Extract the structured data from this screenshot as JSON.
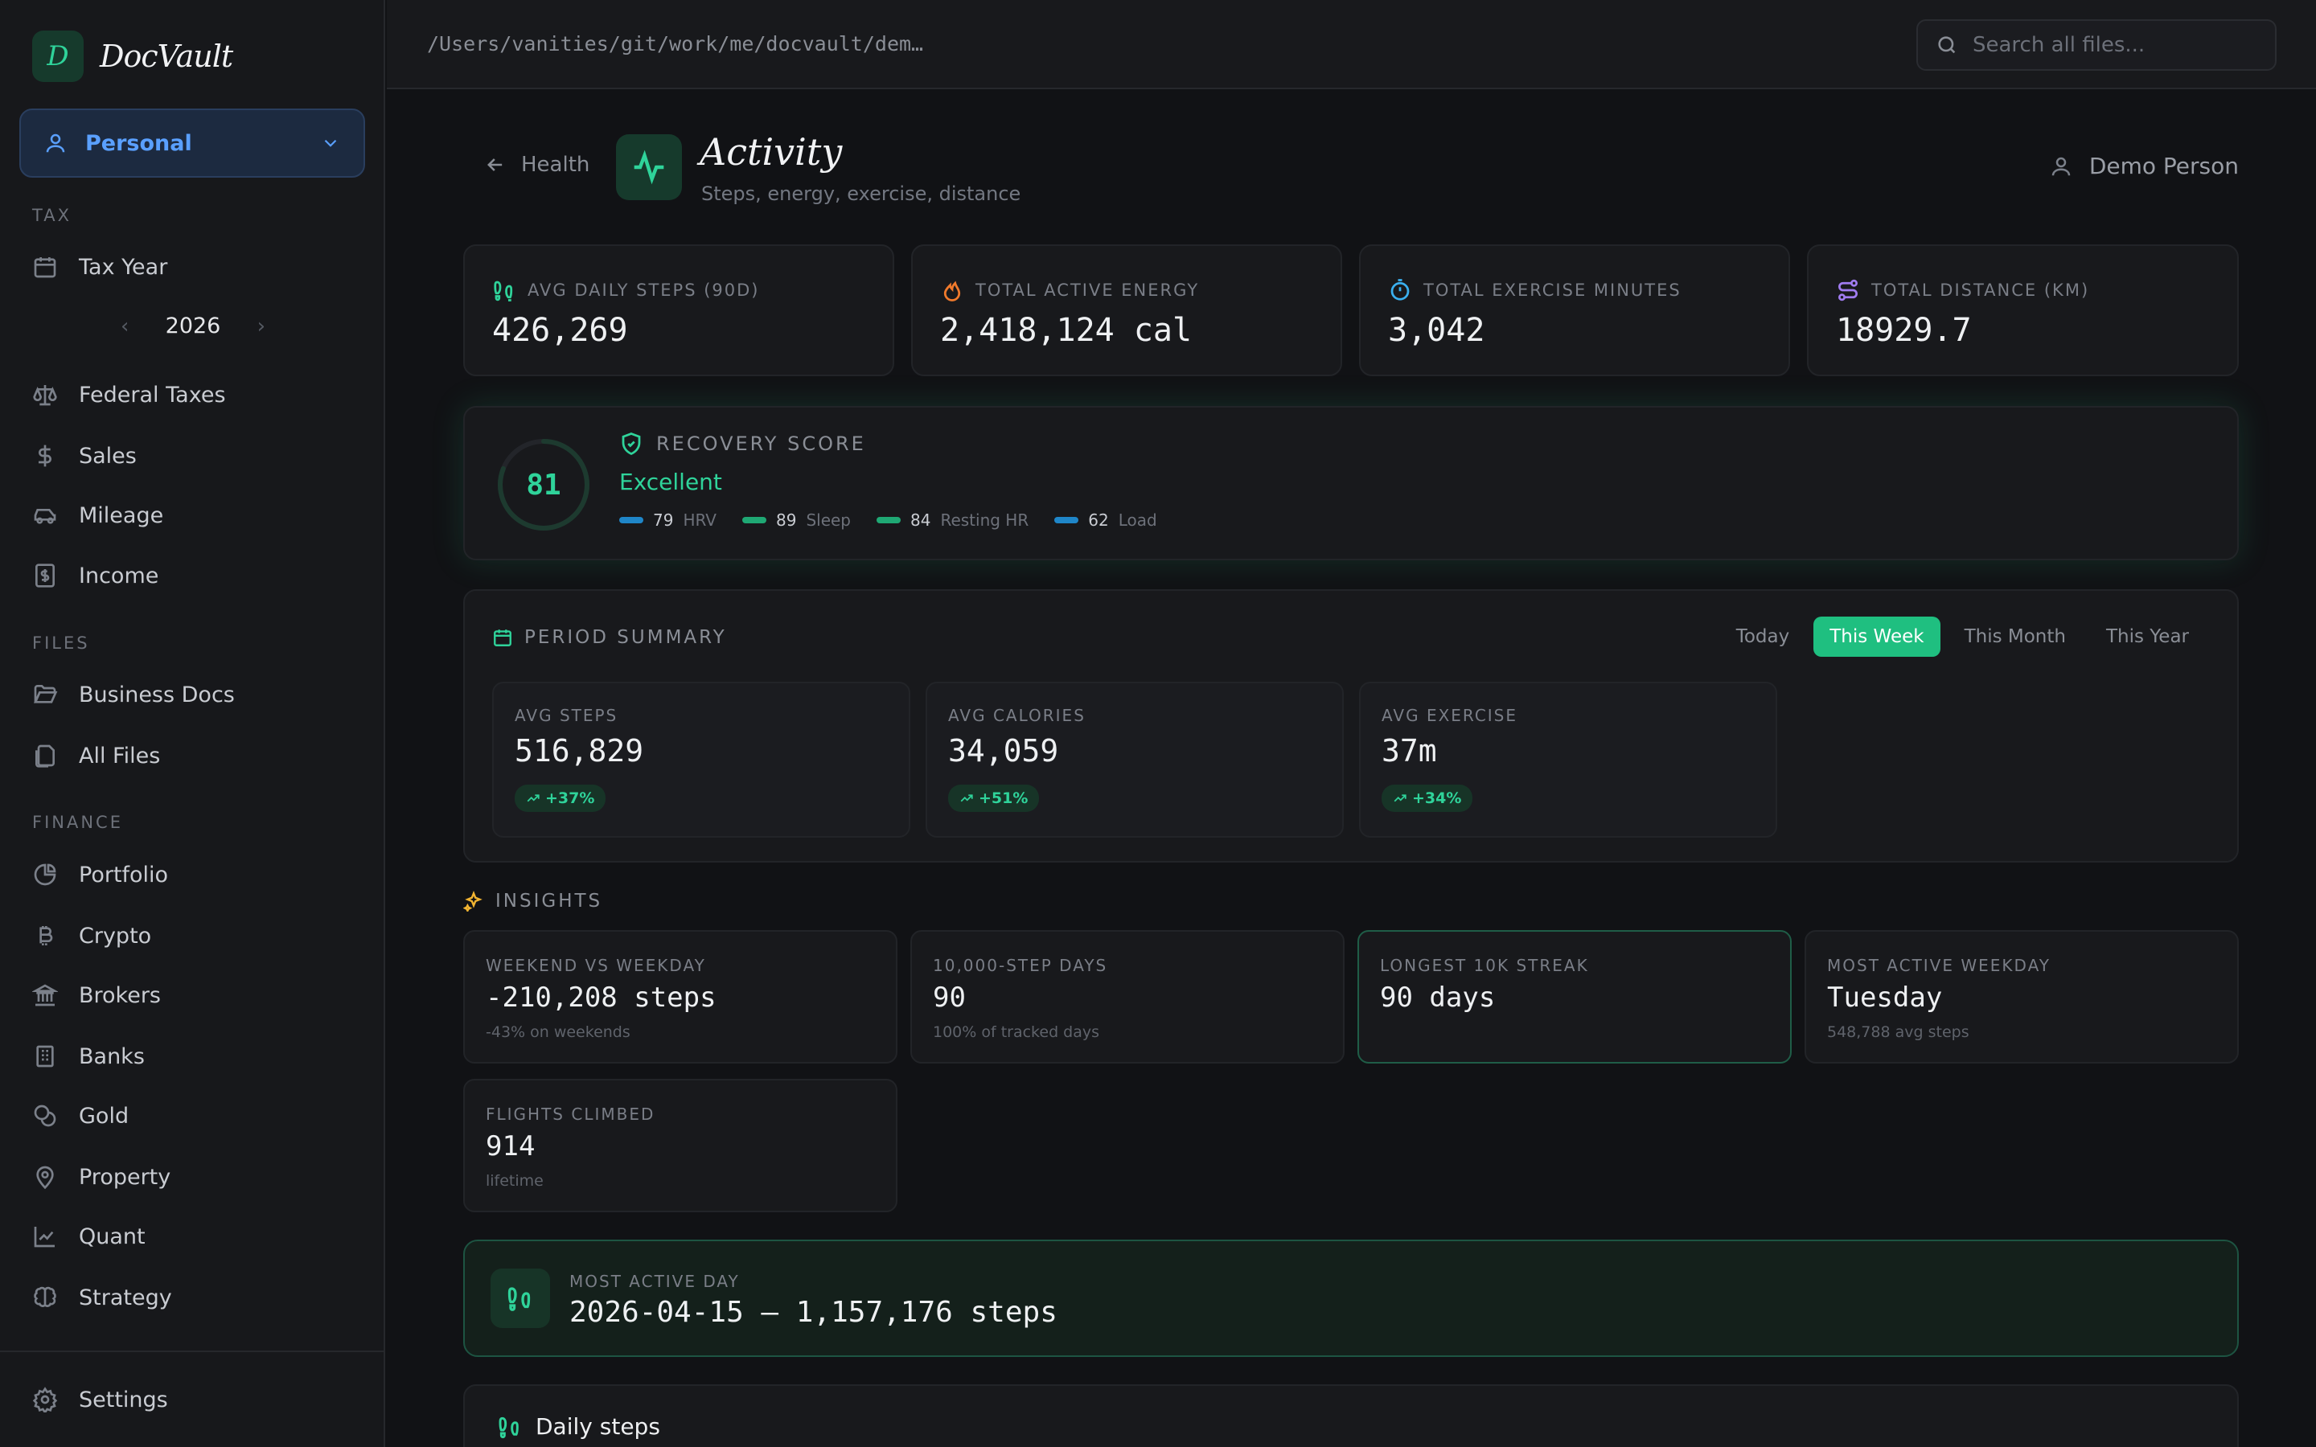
{
  "app": {
    "name": "DocVault",
    "logo_letter": "D"
  },
  "workspace": {
    "label": "Personal"
  },
  "sidebar": {
    "sections": {
      "tax": "TAX",
      "files": "FILES",
      "finance": "FINANCE"
    },
    "tax_year_label": "Tax Year",
    "year": "2026",
    "items": {
      "federal_taxes": "Federal Taxes",
      "sales": "Sales",
      "mileage": "Mileage",
      "income": "Income",
      "business_docs": "Business Docs",
      "all_files": "All Files",
      "portfolio": "Portfolio",
      "crypto": "Crypto",
      "brokers": "Brokers",
      "banks": "Banks",
      "gold": "Gold",
      "property": "Property",
      "quant": "Quant",
      "strategy": "Strategy",
      "settings": "Settings"
    }
  },
  "topbar": {
    "path": "/Users/vanities/git/work/me/docvault/dem…",
    "search_placeholder": "Search all files..."
  },
  "header": {
    "back_label": "Health",
    "title": "Activity",
    "subtitle": "Steps, energy, exercise, distance",
    "user_name": "Demo Person"
  },
  "stats": [
    {
      "label": "AVG DAILY STEPS (90D)",
      "value": "426,269",
      "icon": "footprints-icon",
      "color": "#2fd39a"
    },
    {
      "label": "TOTAL ACTIVE ENERGY",
      "value": "2,418,124 cal",
      "icon": "flame-icon",
      "color": "#f07a2c"
    },
    {
      "label": "TOTAL EXERCISE MINUTES",
      "value": "3,042",
      "icon": "timer-icon",
      "color": "#3ab0f0"
    },
    {
      "label": "TOTAL DISTANCE (KM)",
      "value": "18929.7",
      "icon": "route-icon",
      "color": "#a07cf0"
    }
  ],
  "recovery": {
    "score": "81",
    "score_fraction": 0.81,
    "label": "RECOVERY SCORE",
    "status": "Excellent",
    "metrics": [
      {
        "value": "79",
        "label": "HRV",
        "color": "#1f86c8"
      },
      {
        "value": "89",
        "label": "Sleep",
        "color": "#1fa874"
      },
      {
        "value": "84",
        "label": "Resting HR",
        "color": "#1fa874"
      },
      {
        "value": "62",
        "label": "Load",
        "color": "#1f86c8"
      }
    ]
  },
  "period_summary": {
    "title": "PERIOD SUMMARY",
    "tabs": [
      "Today",
      "This Week",
      "This Month",
      "This Year"
    ],
    "active_tab": "This Week",
    "cards": [
      {
        "label": "AVG STEPS",
        "value": "516,829",
        "change": "+37%"
      },
      {
        "label": "AVG CALORIES",
        "value": "34,059",
        "change": "+51%"
      },
      {
        "label": "AVG EXERCISE",
        "value": "37m",
        "change": "+34%"
      }
    ]
  },
  "insights": {
    "title": "INSIGHTS",
    "cards": [
      {
        "label": "WEEKEND VS WEEKDAY",
        "value": "-210,208 steps",
        "sub": "-43% on weekends"
      },
      {
        "label": "10,000-STEP DAYS",
        "value": "90",
        "sub": "100% of tracked days"
      },
      {
        "label": "LONGEST 10K STREAK",
        "value": "90 days",
        "sub": ""
      },
      {
        "label": "MOST ACTIVE WEEKDAY",
        "value": "Tuesday",
        "sub": "548,788 avg steps"
      },
      {
        "label": "FLIGHTS CLIMBED",
        "value": "914",
        "sub": "lifetime"
      }
    ]
  },
  "most_active_day": {
    "label": "MOST ACTIVE DAY",
    "value": "2026-04-15 — 1,157,176 steps"
  },
  "daily_steps": {
    "title": "Daily steps"
  },
  "colors": {
    "accent": "#2fd39a",
    "active_tab": "#1fbf80",
    "workspace": "#5aa0ff"
  }
}
